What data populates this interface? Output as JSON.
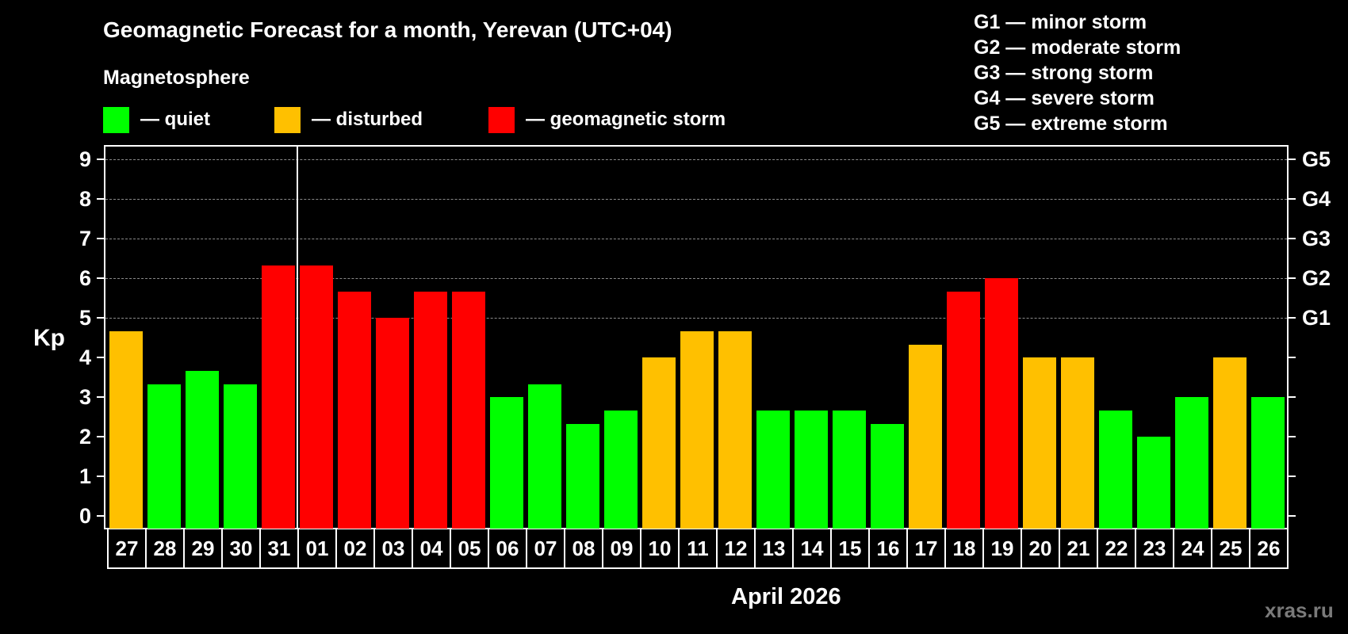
{
  "title": "Geomagnetic Forecast for a month, Yerevan (UTC+04)",
  "magnetosphere_title": "Magnetosphere",
  "legend": [
    {
      "label": "— quiet",
      "color": "#00ff00"
    },
    {
      "label": "— disturbed",
      "color": "#ffc000"
    },
    {
      "label": "— geomagnetic storm",
      "color": "#ff0000"
    }
  ],
  "g_legend": [
    "G1 — minor storm",
    "G2 — moderate storm",
    "G3 — strong storm",
    "G4 — severe storm",
    "G5 — extreme storm"
  ],
  "y_axis_label": "Kp",
  "month_label": "April 2026",
  "watermark": "xras.ru",
  "colors": {
    "quiet": "#00ff00",
    "disturbed": "#ffc000",
    "storm": "#ff0000",
    "background": "#000000",
    "grid": "#8a8a8a"
  },
  "chart_data": {
    "type": "bar",
    "title": "Geomagnetic Forecast for a month, Yerevan (UTC+04)",
    "xlabel": "April 2026",
    "ylabel": "Kp",
    "ylim": [
      0,
      9
    ],
    "yticks": [
      0,
      1,
      2,
      3,
      4,
      5,
      6,
      7,
      8,
      9
    ],
    "right_axis_labels": [
      {
        "y": 5,
        "label": "G1"
      },
      {
        "y": 6,
        "label": "G2"
      },
      {
        "y": 7,
        "label": "G3"
      },
      {
        "y": 8,
        "label": "G4"
      },
      {
        "y": 9,
        "label": "G5"
      }
    ],
    "grid": "dashed horizontal at Kp 5-9",
    "legend": [
      "quiet",
      "disturbed",
      "geomagnetic storm"
    ],
    "categories": [
      "27",
      "28",
      "29",
      "30",
      "31",
      "01",
      "02",
      "03",
      "04",
      "05",
      "06",
      "07",
      "08",
      "09",
      "10",
      "11",
      "12",
      "13",
      "14",
      "15",
      "16",
      "17",
      "18",
      "19",
      "20",
      "21",
      "22",
      "23",
      "24",
      "25",
      "26"
    ],
    "values": [
      4.67,
      3.33,
      3.67,
      3.33,
      6.33,
      6.33,
      5.67,
      5.0,
      5.67,
      5.67,
      3.0,
      3.33,
      2.33,
      2.67,
      4.0,
      4.67,
      4.67,
      2.67,
      2.67,
      2.67,
      2.33,
      4.33,
      5.67,
      6.0,
      4.0,
      4.0,
      2.67,
      2.0,
      3.0,
      4.0,
      3.0
    ],
    "status": [
      "disturbed",
      "quiet",
      "quiet",
      "quiet",
      "storm",
      "storm",
      "storm",
      "storm",
      "storm",
      "storm",
      "quiet",
      "quiet",
      "quiet",
      "quiet",
      "disturbed",
      "disturbed",
      "disturbed",
      "quiet",
      "quiet",
      "quiet",
      "quiet",
      "disturbed",
      "storm",
      "storm",
      "disturbed",
      "disturbed",
      "quiet",
      "quiet",
      "quiet",
      "disturbed",
      "quiet"
    ],
    "separator_after": "31"
  }
}
